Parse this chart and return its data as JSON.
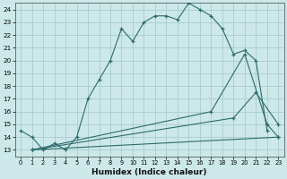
{
  "xlabel": "Humidex (Indice chaleur)",
  "background_color": "#cce8e8",
  "grid_color": "#aacccc",
  "line_color": "#2d6b6b",
  "xlim": [
    -0.5,
    23.5
  ],
  "ylim": [
    12.5,
    24.5
  ],
  "yticks": [
    13,
    14,
    15,
    16,
    17,
    18,
    19,
    20,
    21,
    22,
    23,
    24
  ],
  "xticks": [
    0,
    1,
    2,
    3,
    4,
    5,
    6,
    7,
    8,
    9,
    10,
    11,
    12,
    13,
    14,
    15,
    16,
    17,
    18,
    19,
    20,
    21,
    22,
    23
  ],
  "series": [
    {
      "x": [
        0,
        1,
        2,
        3,
        4,
        5,
        6,
        7,
        8,
        9,
        10,
        11,
        12,
        13,
        14,
        15,
        16,
        17,
        18,
        19,
        20,
        21,
        22
      ],
      "y": [
        14.5,
        14.0,
        13.0,
        13.5,
        13.0,
        14.0,
        17.0,
        18.5,
        20.0,
        22.5,
        21.5,
        23.0,
        23.5,
        23.5,
        23.2,
        24.5,
        24.0,
        23.5,
        22.5,
        20.5,
        20.8,
        20.0,
        14.5
      ]
    },
    {
      "x": [
        1,
        23
      ],
      "y": [
        13.0,
        14.0
      ]
    },
    {
      "x": [
        1,
        19,
        21,
        23
      ],
      "y": [
        13.0,
        15.5,
        17.5,
        15.0
      ]
    },
    {
      "x": [
        1,
        17,
        20,
        22,
        23
      ],
      "y": [
        13.0,
        16.0,
        20.5,
        15.0,
        14.0
      ]
    }
  ]
}
